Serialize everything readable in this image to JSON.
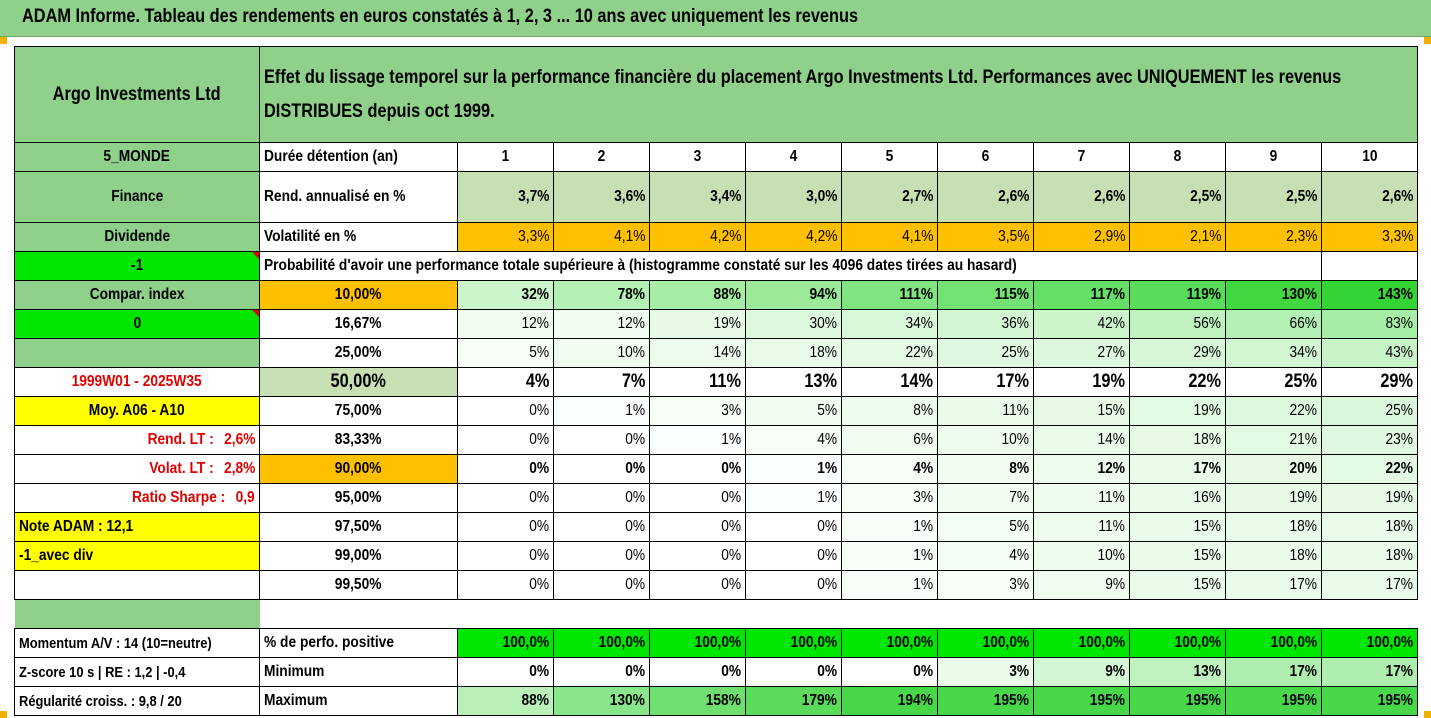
{
  "title": "ADAM Informe. Tableau des rendements en euros constatés à 1, 2, 3 ... 10 ans avec uniquement les revenus",
  "fund_name": "Argo Investments Ltd",
  "description": "Effet du lissage temporel sur la performance financière du placement Argo Investments Ltd. Performances avec UNIQUEMENT les revenus DISTRIBUES depuis oct 1999.",
  "side": {
    "region": "5_MONDE",
    "sector": "Finance",
    "type": "Dividende",
    "flag1": "-1",
    "compar": "Compar. index",
    "flag2": "0",
    "period": "1999W01 - 2025W35",
    "moy": "Moy. A06 - A10",
    "rend_lt_label": "Rend. LT :",
    "rend_lt_value": "2,6%",
    "volat_lt_label": "Volat. LT :",
    "volat_lt_value": "2,8%",
    "sharpe_label": "Ratio Sharpe :",
    "sharpe_value": "0,9",
    "note": "Note ADAM : 12,1",
    "variant": "-1_avec div",
    "momentum": "Momentum A/V : 14 (10=neutre)",
    "zscore": "Z-score 10 s  |  RE : 1,2  |  -0,4",
    "regularite": "Régularité croiss. : 9,8 / 20"
  },
  "row_labels": {
    "duree": "Durée détention (an)",
    "rend": "Rend. annualisé en %",
    "vol": "Volatilité en %",
    "proba": "Probabilité d'avoir une performance totale supérieure à (histogramme constaté sur les 4096 dates tirées au hasard)",
    "perf_pos": "% de perfo. positive",
    "minimum": "Minimum",
    "maximum": "Maximum"
  },
  "years": [
    "1",
    "2",
    "3",
    "4",
    "5",
    "6",
    "7",
    "8",
    "9",
    "10"
  ],
  "rend": [
    "3,7%",
    "3,6%",
    "3,4%",
    "3,0%",
    "2,7%",
    "2,6%",
    "2,6%",
    "2,5%",
    "2,5%",
    "2,6%"
  ],
  "vol": [
    "3,3%",
    "4,1%",
    "4,2%",
    "4,2%",
    "4,1%",
    "3,5%",
    "2,9%",
    "2,1%",
    "2,3%",
    "3,3%"
  ],
  "quantiles": [
    {
      "q": "10,00%",
      "v": [
        "32%",
        "78%",
        "88%",
        "94%",
        "111%",
        "115%",
        "117%",
        "119%",
        "130%",
        "143%"
      ]
    },
    {
      "q": "16,67%",
      "v": [
        "12%",
        "12%",
        "19%",
        "30%",
        "34%",
        "36%",
        "42%",
        "56%",
        "66%",
        "83%"
      ]
    },
    {
      "q": "25,00%",
      "v": [
        "5%",
        "10%",
        "14%",
        "18%",
        "22%",
        "25%",
        "27%",
        "29%",
        "34%",
        "43%"
      ]
    },
    {
      "q": "50,00%",
      "v": [
        "4%",
        "7%",
        "11%",
        "13%",
        "14%",
        "17%",
        "19%",
        "22%",
        "25%",
        "29%"
      ]
    },
    {
      "q": "75,00%",
      "v": [
        "0%",
        "1%",
        "3%",
        "5%",
        "8%",
        "11%",
        "15%",
        "19%",
        "22%",
        "25%"
      ]
    },
    {
      "q": "83,33%",
      "v": [
        "0%",
        "0%",
        "1%",
        "4%",
        "6%",
        "10%",
        "14%",
        "18%",
        "21%",
        "23%"
      ]
    },
    {
      "q": "90,00%",
      "v": [
        "0%",
        "0%",
        "0%",
        "1%",
        "4%",
        "8%",
        "12%",
        "17%",
        "20%",
        "22%"
      ]
    },
    {
      "q": "95,00%",
      "v": [
        "0%",
        "0%",
        "0%",
        "1%",
        "3%",
        "7%",
        "11%",
        "16%",
        "19%",
        "19%"
      ]
    },
    {
      "q": "97,50%",
      "v": [
        "0%",
        "0%",
        "0%",
        "0%",
        "1%",
        "5%",
        "11%",
        "15%",
        "18%",
        "18%"
      ]
    },
    {
      "q": "99,00%",
      "v": [
        "0%",
        "0%",
        "0%",
        "0%",
        "1%",
        "4%",
        "10%",
        "15%",
        "18%",
        "18%"
      ]
    },
    {
      "q": "99,50%",
      "v": [
        "0%",
        "0%",
        "0%",
        "0%",
        "1%",
        "3%",
        "9%",
        "15%",
        "17%",
        "17%"
      ]
    }
  ],
  "perf_pos": [
    "100,0%",
    "100,0%",
    "100,0%",
    "100,0%",
    "100,0%",
    "100,0%",
    "100,0%",
    "100,0%",
    "100,0%",
    "100,0%"
  ],
  "minimum": [
    "0%",
    "0%",
    "0%",
    "0%",
    "0%",
    "3%",
    "9%",
    "13%",
    "17%",
    "17%"
  ],
  "maximum": [
    "88%",
    "130%",
    "158%",
    "179%",
    "194%",
    "195%",
    "195%",
    "195%",
    "195%",
    "195%"
  ],
  "colors": {
    "header_green": "#8fd18a",
    "light_green": "#c6e0b4",
    "orange": "#ffc000",
    "bright_green": "#00e600",
    "yellow": "#ffff00",
    "red_text": "#e00000"
  }
}
